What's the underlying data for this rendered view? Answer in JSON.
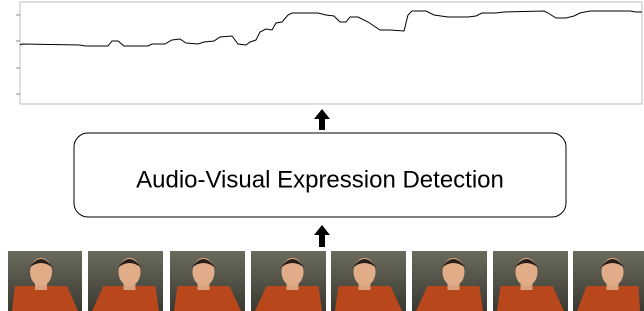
{
  "chart_data": {
    "type": "line",
    "x": [
      0,
      2,
      60,
      65,
      88,
      92,
      98,
      104,
      128,
      132,
      145,
      152,
      160,
      166,
      178,
      184,
      194,
      200,
      212,
      218,
      226,
      230,
      236,
      240,
      246,
      252,
      256,
      262,
      268,
      272,
      298,
      306,
      314,
      320,
      326,
      330,
      338,
      348,
      354,
      360,
      370,
      384,
      388,
      392,
      406,
      414,
      428,
      448,
      456,
      462,
      476,
      484,
      524,
      528,
      536,
      546,
      554,
      560,
      570,
      610,
      616,
      622
    ],
    "values": [
      59,
      60,
      59,
      58,
      58,
      63,
      63,
      58,
      58,
      60,
      60,
      64,
      65,
      61,
      60,
      62,
      63,
      67,
      68,
      60,
      59,
      62,
      64,
      72,
      75,
      74,
      81,
      82,
      89,
      91,
      91,
      89,
      88,
      82,
      82,
      87,
      87,
      82,
      78,
      74,
      74,
      73,
      89,
      93,
      93,
      89,
      87,
      87,
      88,
      91,
      91,
      92,
      93,
      91,
      86,
      86,
      88,
      91,
      93,
      93,
      92,
      92
    ],
    "xlim": [
      0,
      622
    ],
    "ylim": [
      0,
      102
    ],
    "color": "#000000"
  },
  "diagram": {
    "box_label": "Audio-Visual Expression Detection"
  }
}
